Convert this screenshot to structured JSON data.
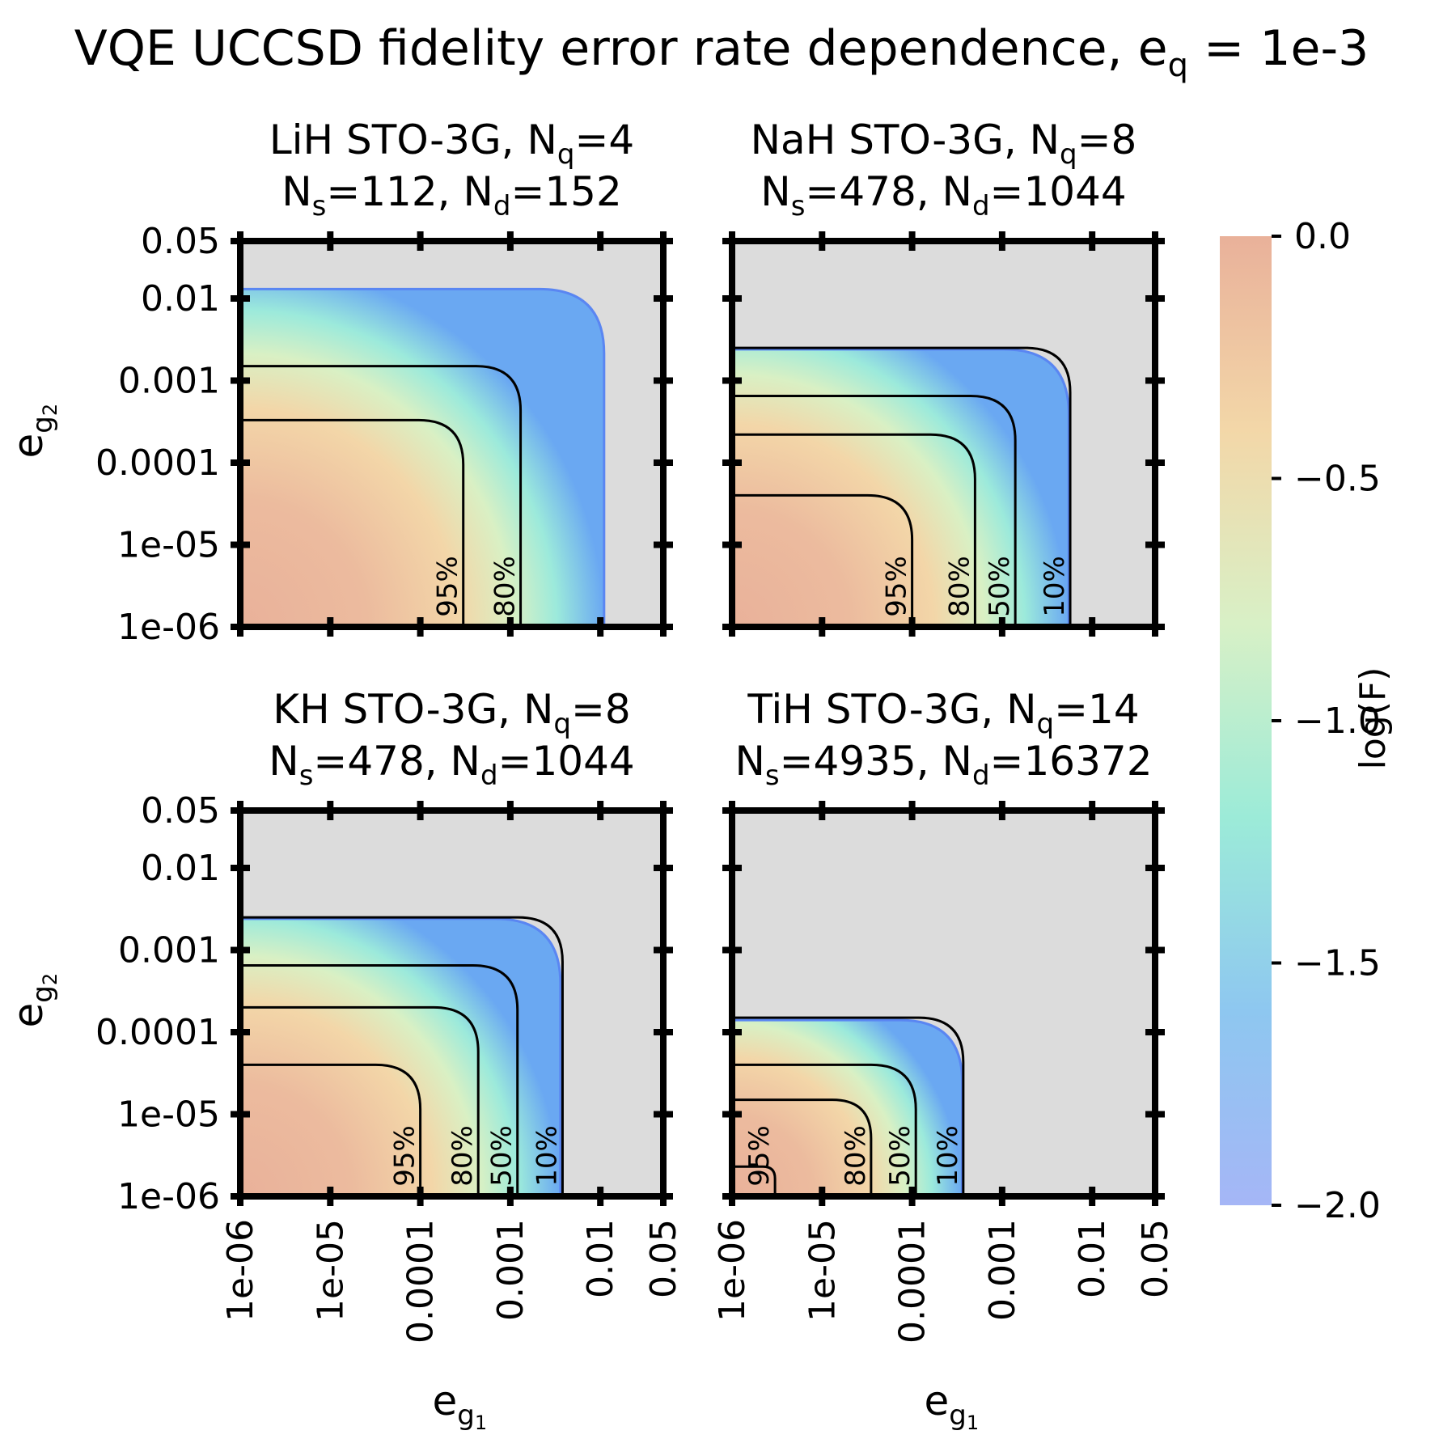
{
  "title": {
    "text": "VQE UCCSD fidelity error rate dependence, e",
    "sub": "q",
    "tail": " = 1e-3"
  },
  "axis_text": {
    "x_main": "e",
    "x_sub": "g",
    "x_subsub": "1",
    "y_main": "e",
    "y_sub": "g",
    "y_subsub": "2"
  },
  "colorbar": {
    "label": "log(F)",
    "ticks": [
      "0.0",
      "−0.5",
      "−1.0",
      "−1.5",
      "−2.0"
    ],
    "stops": [
      "#e9b19a",
      "#f3d7a8",
      "#d8f0c6",
      "#9cebd8",
      "#8ec7f0",
      "#a5b6f6"
    ]
  },
  "colors": {
    "outside": "#dcdcdc",
    "contour": "#000000"
  },
  "chart_data": [
    {
      "type": "contour",
      "title_line1": [
        "LiH STO-3G, N",
        "q",
        "=4"
      ],
      "title_line2": [
        "N",
        "s",
        "=112, N",
        "d",
        "=152"
      ],
      "xscale": "log",
      "yscale": "log",
      "x_ticks": [
        "1e-06",
        "1e-05",
        "0.0001",
        "0.001",
        "0.01",
        "0.05"
      ],
      "y_ticks": [
        "0.05",
        "0.01",
        "0.001",
        "0.0001",
        "1e-05",
        "1e-06"
      ],
      "show_x_ticklabels": false,
      "show_y_ticklabels": true,
      "show_xlabel": false,
      "show_ylabel": true,
      "xlim": [
        1e-06,
        0.05
      ],
      "ylim": [
        1e-06,
        0.05
      ],
      "region": {
        "x_end": 0.011,
        "y_end": 0.013,
        "value": -2.0
      },
      "contours": [
        {
          "label": "95%",
          "x": 0.0003,
          "y": 0.00033
        },
        {
          "label": "80%",
          "x": 0.0013,
          "y": 0.0015
        }
      ]
    },
    {
      "type": "contour",
      "title_line1": [
        "NaH STO-3G, N",
        "q",
        "=8"
      ],
      "title_line2": [
        "N",
        "s",
        "=478, N",
        "d",
        "=1044"
      ],
      "xscale": "log",
      "yscale": "log",
      "x_ticks": [
        "1e-06",
        "1e-05",
        "0.0001",
        "0.001",
        "0.01",
        "0.05"
      ],
      "y_ticks": [
        "0.05",
        "0.01",
        "0.001",
        "0.0001",
        "1e-05",
        "1e-06"
      ],
      "show_x_ticklabels": false,
      "show_y_ticklabels": false,
      "show_xlabel": false,
      "show_ylabel": false,
      "xlim": [
        1e-06,
        0.05
      ],
      "ylim": [
        1e-06,
        0.05
      ],
      "region": {
        "x_end": 0.0055,
        "y_end": 0.0024,
        "value": -2.0
      },
      "contours": [
        {
          "label": "95%",
          "x": 0.0001,
          "y": 4e-05
        },
        {
          "label": "80%",
          "x": 0.0005,
          "y": 0.00022
        },
        {
          "label": "50%",
          "x": 0.0014,
          "y": 0.00065
        },
        {
          "label": "10%",
          "x": 0.0057,
          "y": 0.0025
        }
      ]
    },
    {
      "type": "contour",
      "title_line1": [
        "KH STO-3G, N",
        "q",
        "=8"
      ],
      "title_line2": [
        "N",
        "s",
        "=478, N",
        "d",
        "=1044"
      ],
      "xscale": "log",
      "yscale": "log",
      "x_ticks": [
        "1e-06",
        "1e-05",
        "0.0001",
        "0.001",
        "0.01",
        "0.05"
      ],
      "y_ticks": [
        "0.05",
        "0.01",
        "0.001",
        "0.0001",
        "1e-05",
        "1e-06"
      ],
      "show_x_ticklabels": true,
      "show_y_ticklabels": true,
      "show_xlabel": true,
      "show_ylabel": true,
      "xlim": [
        1e-06,
        0.05
      ],
      "ylim": [
        1e-06,
        0.05
      ],
      "region": {
        "x_end": 0.0036,
        "y_end": 0.0024,
        "value": -2.0
      },
      "contours": [
        {
          "label": "95%",
          "x": 0.0001,
          "y": 4e-05
        },
        {
          "label": "80%",
          "x": 0.00044,
          "y": 0.0002
        },
        {
          "label": "50%",
          "x": 0.0012,
          "y": 0.00065
        },
        {
          "label": "10%",
          "x": 0.0038,
          "y": 0.0025
        }
      ]
    },
    {
      "type": "contour",
      "title_line1": [
        "TiH STO-3G, N",
        "q",
        "=14"
      ],
      "title_line2": [
        "N",
        "s",
        "=4935, N",
        "d",
        "=16372"
      ],
      "xscale": "log",
      "yscale": "log",
      "x_ticks": [
        "1e-06",
        "1e-05",
        "0.0001",
        "0.001",
        "0.01",
        "0.05"
      ],
      "y_ticks": [
        "0.05",
        "0.01",
        "0.001",
        "0.0001",
        "1e-05",
        "1e-06"
      ],
      "show_x_ticklabels": true,
      "show_y_ticklabels": false,
      "show_xlabel": true,
      "show_ylabel": false,
      "xlim": [
        1e-06,
        0.05
      ],
      "ylim": [
        1e-06,
        0.05
      ],
      "region": {
        "x_end": 0.00036,
        "y_end": 0.00014,
        "value": -2.0
      },
      "contours": [
        {
          "label": "95%",
          "x": 3e-06,
          "y": 2.3e-06
        },
        {
          "label": "80%",
          "x": 3.5e-05,
          "y": 1.5e-05
        },
        {
          "label": "50%",
          "x": 0.00011,
          "y": 4e-05
        },
        {
          "label": "10%",
          "x": 0.00037,
          "y": 0.00015
        }
      ]
    }
  ]
}
